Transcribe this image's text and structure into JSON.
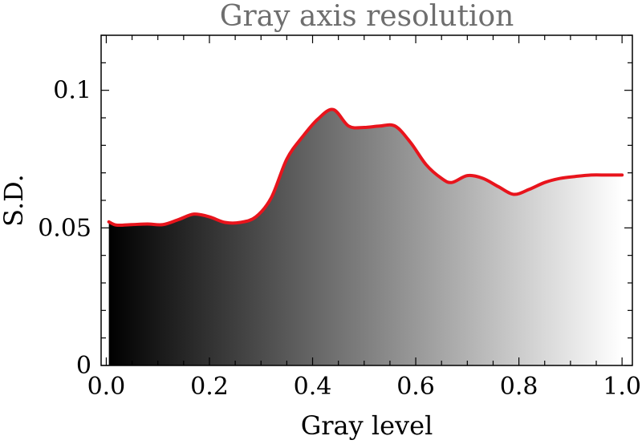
{
  "chart_data": {
    "type": "area",
    "title": "Gray axis resolution",
    "xlabel": "Gray level",
    "ylabel": "S.D.",
    "xlim": [
      -0.01,
      1.02
    ],
    "ylim": [
      0,
      0.12
    ],
    "xticks": [
      {
        "value": 0.0,
        "label": "0.0"
      },
      {
        "value": 0.2,
        "label": "0.2"
      },
      {
        "value": 0.4,
        "label": "0.4"
      },
      {
        "value": 0.6,
        "label": "0.6"
      },
      {
        "value": 0.8,
        "label": "0.8"
      },
      {
        "value": 1.0,
        "label": "1.0"
      }
    ],
    "yticks": [
      {
        "value": 0,
        "label": "0"
      },
      {
        "value": 0.05,
        "label": "0.05"
      },
      {
        "value": 0.1,
        "label": "0.1"
      }
    ],
    "grid": false,
    "fill": "gray gradient from black (0) to white (1)",
    "line_color": "#e8141c",
    "title_color": "#6e6e6e",
    "series": [
      {
        "x": [
          0.005,
          0.02,
          0.05,
          0.08,
          0.11,
          0.14,
          0.17,
          0.2,
          0.23,
          0.26,
          0.29,
          0.32,
          0.35,
          0.38,
          0.41,
          0.44,
          0.47,
          0.5,
          0.53,
          0.56,
          0.59,
          0.62,
          0.65,
          0.67,
          0.7,
          0.73,
          0.76,
          0.79,
          0.82,
          0.85,
          0.88,
          0.91,
          0.94,
          0.97,
          1.0
        ],
        "values": [
          0.0522,
          0.051,
          0.0512,
          0.0514,
          0.0512,
          0.053,
          0.055,
          0.054,
          0.052,
          0.052,
          0.054,
          0.061,
          0.075,
          0.083,
          0.0895,
          0.093,
          0.087,
          0.0865,
          0.087,
          0.087,
          0.081,
          0.073,
          0.068,
          0.0665,
          0.069,
          0.068,
          0.065,
          0.0622,
          0.064,
          0.0665,
          0.068,
          0.0687,
          0.0692,
          0.0692,
          0.0692
        ]
      }
    ]
  }
}
